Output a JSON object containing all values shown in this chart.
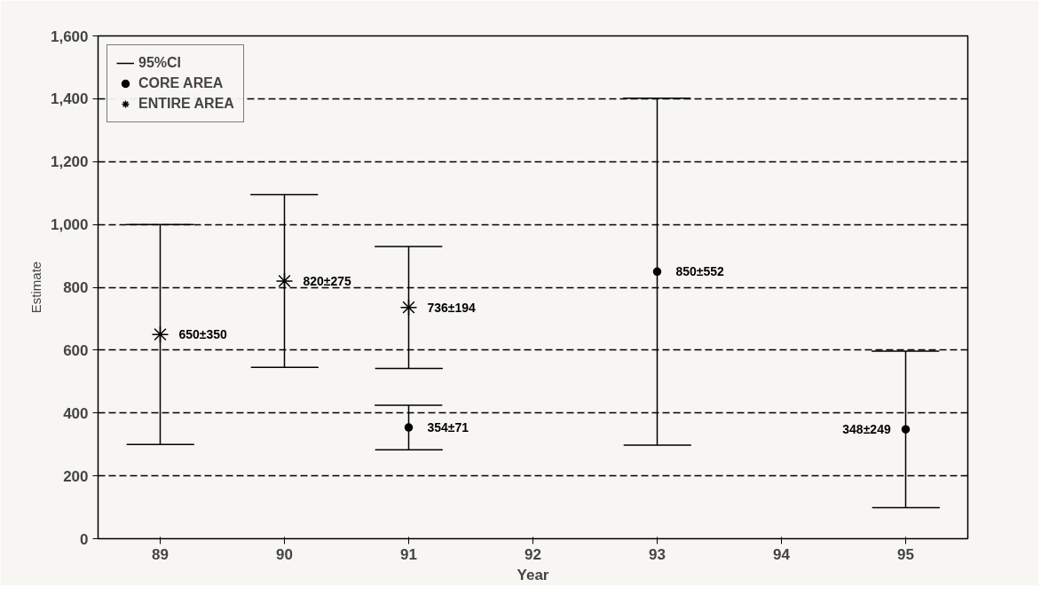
{
  "chart_data": {
    "type": "scatter",
    "xlabel": "Year",
    "ylabel": "Estimate",
    "categories": [
      "89",
      "90",
      "91",
      "92",
      "93",
      "94",
      "95"
    ],
    "series": [
      {
        "name": "CORE AREA",
        "color": "#000000",
        "marker": "circle",
        "values": [
          null,
          null,
          354,
          null,
          850,
          null,
          348
        ],
        "errors": [
          null,
          null,
          71,
          null,
          552,
          null,
          249
        ],
        "value_labels": [
          null,
          null,
          "354±71",
          null,
          "850±552",
          null,
          "348±249"
        ]
      },
      {
        "name": "ENTIRE AREA",
        "color": "#000000",
        "marker": "cross",
        "values": [
          650,
          820,
          736,
          null,
          null,
          null,
          null
        ],
        "errors": [
          350,
          275,
          194,
          null,
          null,
          null,
          null
        ],
        "value_labels": [
          "650±350",
          "820±275",
          "736±194",
          null,
          null,
          null,
          null
        ]
      }
    ],
    "annotations": [
      "95%CI"
    ],
    "ylim": [
      0,
      1600
    ],
    "yticks": [
      0,
      {
        "value": 200,
        "label": "200"
      },
      {
        "value": 400,
        "label": "400"
      },
      {
        "value": 600,
        "label": "600"
      },
      {
        "value": 800,
        "label": "800"
      },
      {
        "value": 1000,
        "label": "1,000"
      },
      {
        "value": 1200,
        "label": "1,200"
      },
      {
        "value": 1400,
        "label": "1,400"
      },
      {
        "value": 1600,
        "label": "1,600"
      }
    ],
    "grid": "y",
    "legend": "top left"
  }
}
